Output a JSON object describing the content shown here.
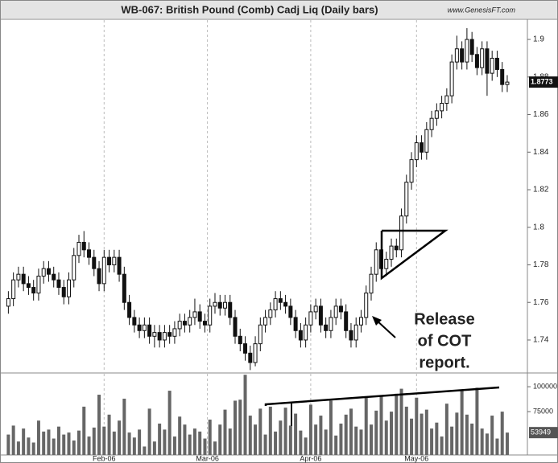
{
  "chart_data": {
    "type": "candlestick",
    "title": "WB-067:  British Pound (Comb) Cadj Liq  (Daily bars)",
    "source": "www.GenesisFT.com",
    "annotation": [
      "Release",
      "of COT",
      "report."
    ],
    "last_price": 1.8773,
    "ylim": [
      1.7233,
      1.9103
    ],
    "yticks": [
      1.74,
      1.76,
      1.78,
      1.8,
      1.82,
      1.84,
      1.86,
      1.88,
      1.9
    ],
    "volume_lim": [
      31500,
      113000
    ],
    "volume_ticks": [
      75000,
      100000
    ],
    "xlim": [
      -1.5,
      103
    ],
    "xticks": [
      {
        "value": 19,
        "label": "Feb-06"
      },
      {
        "value": 39.5,
        "label": "Mar-06"
      },
      {
        "value": 60,
        "label": "Apr-06"
      },
      {
        "value": 81,
        "label": "May-06"
      }
    ],
    "grid": true,
    "up_color": "#ffffff",
    "down_color": "#111111",
    "volume_color": "#666666",
    "open": [
      1.758,
      1.762,
      1.772,
      1.775,
      1.77,
      1.768,
      1.765,
      1.774,
      1.778,
      1.775,
      1.772,
      1.768,
      1.763,
      1.772,
      1.785,
      1.792,
      1.788,
      1.784,
      1.778,
      1.77,
      1.784,
      1.78,
      1.784,
      1.775,
      1.76,
      1.752,
      1.748,
      1.745,
      1.748,
      1.742,
      1.744,
      1.74,
      1.744,
      1.742,
      1.746,
      1.75,
      1.748,
      1.752,
      1.755,
      1.75,
      1.748,
      1.758,
      1.76,
      1.757,
      1.76,
      1.752,
      1.742,
      1.738,
      1.733,
      1.728,
      1.738,
      1.748,
      1.752,
      1.756,
      1.762,
      1.76,
      1.758,
      1.752,
      1.745,
      1.74,
      1.748,
      1.755,
      1.758,
      1.748,
      1.745,
      1.752,
      1.758,
      1.755,
      1.745,
      1.74,
      1.748,
      1.752,
      1.765,
      1.775,
      1.788,
      1.778,
      1.783,
      1.79,
      1.788,
      1.806,
      1.824,
      1.836,
      1.845,
      1.84,
      1.852,
      1.858,
      1.862,
      1.866,
      1.87,
      1.888,
      1.895,
      1.888,
      1.9,
      1.892,
      1.885,
      1.895,
      1.882,
      1.89,
      1.884,
      1.876
    ],
    "high": [
      1.766,
      1.776,
      1.779,
      1.779,
      1.774,
      1.772,
      1.778,
      1.782,
      1.782,
      1.779,
      1.776,
      1.772,
      1.776,
      1.789,
      1.796,
      1.798,
      1.792,
      1.788,
      1.782,
      1.788,
      1.788,
      1.788,
      1.788,
      1.779,
      1.764,
      1.756,
      1.752,
      1.752,
      1.752,
      1.748,
      1.748,
      1.748,
      1.748,
      1.75,
      1.754,
      1.754,
      1.756,
      1.762,
      1.759,
      1.754,
      1.762,
      1.765,
      1.764,
      1.764,
      1.764,
      1.756,
      1.746,
      1.742,
      1.737,
      1.742,
      1.752,
      1.756,
      1.76,
      1.766,
      1.766,
      1.764,
      1.762,
      1.756,
      1.749,
      1.752,
      1.759,
      1.762,
      1.762,
      1.752,
      1.756,
      1.762,
      1.762,
      1.759,
      1.749,
      1.752,
      1.756,
      1.769,
      1.779,
      1.792,
      1.792,
      1.787,
      1.794,
      1.794,
      1.81,
      1.828,
      1.84,
      1.849,
      1.849,
      1.856,
      1.862,
      1.866,
      1.87,
      1.874,
      1.892,
      1.902,
      1.899,
      1.906,
      1.904,
      1.896,
      1.899,
      1.899,
      1.894,
      1.894,
      1.888,
      1.881
    ],
    "low": [
      1.754,
      1.758,
      1.768,
      1.766,
      1.764,
      1.761,
      1.761,
      1.77,
      1.771,
      1.768,
      1.764,
      1.759,
      1.759,
      1.768,
      1.781,
      1.784,
      1.78,
      1.774,
      1.766,
      1.766,
      1.776,
      1.776,
      1.771,
      1.756,
      1.748,
      1.744,
      1.741,
      1.741,
      1.738,
      1.736,
      1.736,
      1.736,
      1.738,
      1.738,
      1.742,
      1.744,
      1.744,
      1.748,
      1.746,
      1.744,
      1.744,
      1.754,
      1.753,
      1.753,
      1.748,
      1.738,
      1.734,
      1.729,
      1.724,
      1.726,
      1.734,
      1.744,
      1.748,
      1.752,
      1.756,
      1.754,
      1.748,
      1.741,
      1.736,
      1.736,
      1.744,
      1.751,
      1.744,
      1.741,
      1.741,
      1.748,
      1.751,
      1.741,
      1.736,
      1.736,
      1.744,
      1.748,
      1.761,
      1.771,
      1.774,
      1.774,
      1.779,
      1.784,
      1.784,
      1.802,
      1.82,
      1.832,
      1.836,
      1.836,
      1.848,
      1.854,
      1.858,
      1.862,
      1.866,
      1.884,
      1.884,
      1.884,
      1.888,
      1.881,
      1.881,
      1.87,
      1.878,
      1.88,
      1.872,
      1.872
    ],
    "close": [
      1.762,
      1.772,
      1.775,
      1.77,
      1.768,
      1.765,
      1.774,
      1.778,
      1.775,
      1.772,
      1.768,
      1.763,
      1.772,
      1.785,
      1.792,
      1.788,
      1.784,
      1.778,
      1.77,
      1.784,
      1.78,
      1.784,
      1.775,
      1.76,
      1.752,
      1.748,
      1.745,
      1.748,
      1.742,
      1.744,
      1.74,
      1.744,
      1.742,
      1.746,
      1.75,
      1.748,
      1.752,
      1.755,
      1.75,
      1.748,
      1.758,
      1.76,
      1.757,
      1.76,
      1.752,
      1.742,
      1.738,
      1.733,
      1.728,
      1.738,
      1.748,
      1.752,
      1.756,
      1.762,
      1.76,
      1.758,
      1.752,
      1.745,
      1.74,
      1.748,
      1.755,
      1.758,
      1.748,
      1.745,
      1.752,
      1.758,
      1.755,
      1.745,
      1.74,
      1.748,
      1.752,
      1.765,
      1.775,
      1.788,
      1.778,
      1.783,
      1.79,
      1.788,
      1.806,
      1.824,
      1.836,
      1.845,
      1.84,
      1.852,
      1.858,
      1.862,
      1.866,
      1.87,
      1.888,
      1.895,
      1.888,
      1.9,
      1.892,
      1.885,
      1.895,
      1.882,
      1.89,
      1.884,
      1.876,
      1.8773
    ],
    "volume": [
      52000,
      61000,
      45000,
      58000,
      49000,
      44000,
      66000,
      55000,
      57000,
      48000,
      60000,
      52000,
      54000,
      46000,
      56000,
      80000,
      50000,
      59000,
      92000,
      60000,
      72000,
      55000,
      66000,
      88000,
      54000,
      49000,
      57000,
      40000,
      78000,
      45000,
      63000,
      57000,
      96000,
      50000,
      70000,
      62000,
      52000,
      58000,
      55000,
      48000,
      67000,
      45000,
      62000,
      77000,
      58000,
      86000,
      87000,
      112000,
      71000,
      62000,
      78000,
      52000,
      80000,
      55000,
      66000,
      79000,
      61000,
      73000,
      56000,
      49000,
      82000,
      62000,
      71000,
      57000,
      86000,
      51000,
      63000,
      72000,
      78000,
      60000,
      57000,
      89000,
      62000,
      76000,
      91000,
      66000,
      75000,
      93000,
      98000,
      80000,
      68000,
      89000,
      73000,
      77000,
      58000,
      64000,
      50000,
      83000,
      60000,
      74000,
      96000,
      72000,
      63000,
      99000,
      58000,
      53000,
      71000,
      48000,
      75000,
      53949
    ]
  }
}
